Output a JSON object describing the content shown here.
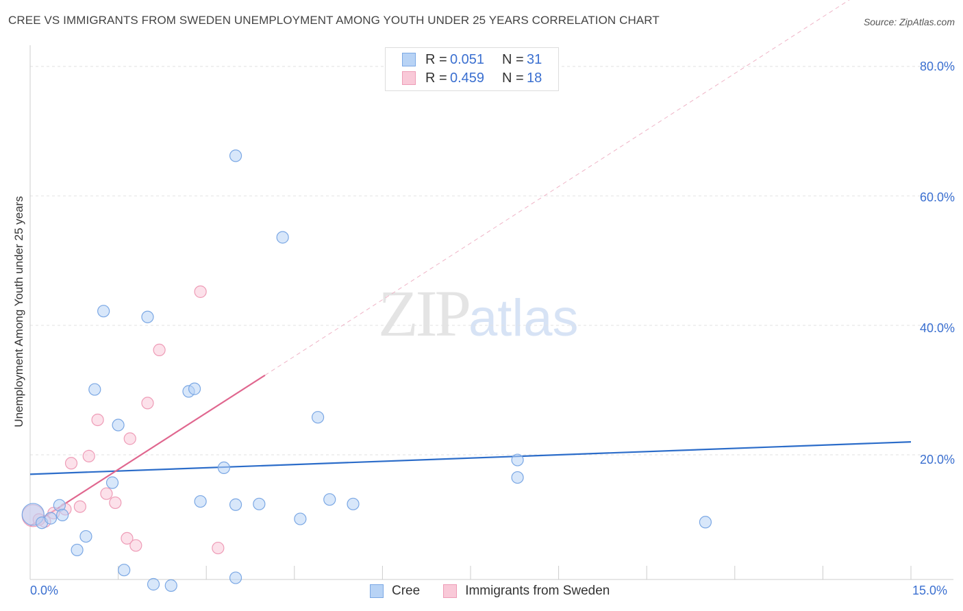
{
  "title": "CREE VS IMMIGRANTS FROM SWEDEN UNEMPLOYMENT AMONG YOUTH UNDER 25 YEARS CORRELATION CHART",
  "source": "Source: ZipAtlas.com",
  "watermark": {
    "zip": "ZIP",
    "atlas": "atlas"
  },
  "legend": {
    "r_label": "R =",
    "n_label": "N =",
    "series": [
      {
        "name": "Cree",
        "r": "0.051",
        "n": "31"
      },
      {
        "name": "Immigrants from Sweden",
        "r": "0.459",
        "n": "18"
      }
    ]
  },
  "colors": {
    "cree_fill": "#b8d3f5",
    "cree_stroke": "#7aa7e4",
    "cree_line": "#2b6cc9",
    "sweden_fill": "#f9c9d8",
    "sweden_stroke": "#ee9bb6",
    "sweden_line": "#e0678f",
    "axis_label": "#3a6fd0"
  },
  "chart_data": {
    "type": "scatter",
    "title": "CREE VS IMMIGRANTS FROM SWEDEN UNEMPLOYMENT AMONG YOUTH UNDER 25 YEARS CORRELATION CHART",
    "xlabel": "",
    "ylabel": "Unemployment Among Youth under 25 years",
    "xlim": [
      0,
      15
    ],
    "ylim": [
      0,
      80
    ],
    "x_tick_labels": [
      "0.0%",
      "15.0%"
    ],
    "y_tick_labels": [
      {
        "value": 20,
        "label": "20.0%"
      },
      {
        "value": 40,
        "label": "40.0%"
      },
      {
        "value": 60,
        "label": "60.0%"
      },
      {
        "value": 80,
        "label": "80.0%"
      }
    ],
    "grid": true,
    "series": [
      {
        "name": "Cree",
        "trend": {
          "x": [
            0,
            15
          ],
          "y": [
            17.0,
            22.0
          ],
          "dashed_extension": false
        },
        "points": [
          {
            "x": 0.05,
            "y": 10.8,
            "big": true
          },
          {
            "x": 0.2,
            "y": 9.5
          },
          {
            "x": 0.35,
            "y": 10.2
          },
          {
            "x": 0.5,
            "y": 12.2
          },
          {
            "x": 0.55,
            "y": 10.7
          },
          {
            "x": 0.8,
            "y": 5.3
          },
          {
            "x": 0.95,
            "y": 7.4
          },
          {
            "x": 1.1,
            "y": 30.1
          },
          {
            "x": 1.25,
            "y": 42.2
          },
          {
            "x": 1.4,
            "y": 15.7
          },
          {
            "x": 1.5,
            "y": 24.6
          },
          {
            "x": 1.6,
            "y": 2.2
          },
          {
            "x": 2.0,
            "y": 41.3
          },
          {
            "x": 2.1,
            "y": 0.0
          },
          {
            "x": 2.4,
            "y": -0.2
          },
          {
            "x": 2.7,
            "y": 29.8
          },
          {
            "x": 2.8,
            "y": 30.2
          },
          {
            "x": 2.9,
            "y": 12.8
          },
          {
            "x": 3.3,
            "y": 18.0
          },
          {
            "x": 3.5,
            "y": 12.3
          },
          {
            "x": 3.5,
            "y": 1.0
          },
          {
            "x": 3.5,
            "y": 66.2
          },
          {
            "x": 3.9,
            "y": 12.4
          },
          {
            "x": 4.3,
            "y": 53.6
          },
          {
            "x": 4.6,
            "y": 10.1
          },
          {
            "x": 4.9,
            "y": 25.8
          },
          {
            "x": 5.1,
            "y": 13.1
          },
          {
            "x": 5.5,
            "y": 12.4
          },
          {
            "x": 8.3,
            "y": 16.5
          },
          {
            "x": 8.3,
            "y": 19.2
          },
          {
            "x": 11.5,
            "y": 9.6
          }
        ]
      },
      {
        "name": "Immigrants from Sweden",
        "trend": {
          "x": [
            0,
            4.0
          ],
          "y": [
            9.0,
            32.3
          ],
          "dashed_to": {
            "x": 15,
            "y": 96.4
          }
        },
        "points": [
          {
            "x": 0.05,
            "y": 10.6,
            "big": true
          },
          {
            "x": 0.25,
            "y": 9.7
          },
          {
            "x": 0.4,
            "y": 11.0
          },
          {
            "x": 0.6,
            "y": 11.6
          },
          {
            "x": 0.7,
            "y": 18.7
          },
          {
            "x": 0.85,
            "y": 12.0
          },
          {
            "x": 1.0,
            "y": 19.8
          },
          {
            "x": 1.15,
            "y": 25.4
          },
          {
            "x": 1.3,
            "y": 14.0
          },
          {
            "x": 1.45,
            "y": 12.6
          },
          {
            "x": 1.65,
            "y": 7.1
          },
          {
            "x": 1.7,
            "y": 22.5
          },
          {
            "x": 1.8,
            "y": 6.0
          },
          {
            "x": 2.0,
            "y": 28.0
          },
          {
            "x": 2.2,
            "y": 36.2
          },
          {
            "x": 2.9,
            "y": 45.2
          },
          {
            "x": 3.2,
            "y": 5.6
          },
          {
            "x": 0.15,
            "y": 10.0
          }
        ]
      }
    ]
  }
}
